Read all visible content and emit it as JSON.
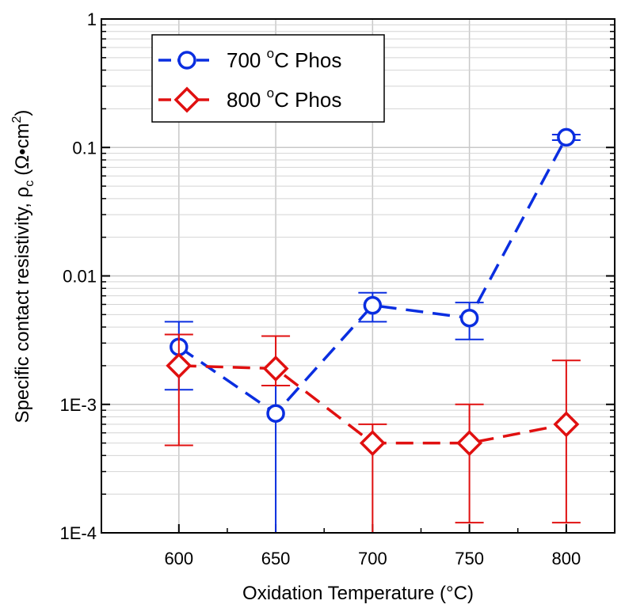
{
  "chart_data": {
    "type": "line",
    "xlabel": "Oxidation Temperature (°C)",
    "ylabel_main": "Specific contact resistivity, ρ",
    "ylabel_sub": "c",
    "ylabel_unit_pre": "(Ω•cm",
    "ylabel_unit_sup": "2",
    "ylabel_unit_post": ")",
    "x_ticks": [
      {
        "value": 600,
        "label": "600"
      },
      {
        "value": 650,
        "label": "650"
      },
      {
        "value": 700,
        "label": "700"
      },
      {
        "value": 750,
        "label": "750"
      },
      {
        "value": 800,
        "label": "800"
      }
    ],
    "y_ticks": [
      {
        "value": 0.0001,
        "label": "1E-4"
      },
      {
        "value": 0.001,
        "label": "1E-3"
      },
      {
        "value": 0.01,
        "label": "0.01"
      },
      {
        "value": 0.1,
        "label": "0.1"
      },
      {
        "value": 1,
        "label": "1"
      }
    ],
    "xlim": [
      560,
      825
    ],
    "ylim": [
      0.0001,
      1
    ],
    "y_scale": "log",
    "grid": true,
    "legend_position": "top-left",
    "series": [
      {
        "name_pre": "700 ",
        "name_sup": "o",
        "name_post": "C Phos",
        "color": "#0a2ee0",
        "marker": "circle",
        "points": [
          {
            "x": 600,
            "y": 0.0028,
            "err_low": 0.0013,
            "err_high": 0.0044
          },
          {
            "x": 650,
            "y": 0.00085,
            "err_low": 0.0001,
            "err_high": 0.0014
          },
          {
            "x": 700,
            "y": 0.0059,
            "err_low": 0.0044,
            "err_high": 0.0074
          },
          {
            "x": 750,
            "y": 0.0047,
            "err_low": 0.0032,
            "err_high": 0.0062
          },
          {
            "x": 800,
            "y": 0.12,
            "err_low": 0.114,
            "err_high": 0.126
          }
        ]
      },
      {
        "name_pre": "800 ",
        "name_sup": "o",
        "name_post": "C Phos",
        "color": "#e01010",
        "marker": "diamond",
        "points": [
          {
            "x": 600,
            "y": 0.002,
            "err_low": 0.00048,
            "err_high": 0.0035
          },
          {
            "x": 650,
            "y": 0.0019,
            "err_low": 0.0014,
            "err_high": 0.0034
          },
          {
            "x": 700,
            "y": 0.0005,
            "err_low": 0.0001,
            "err_high": 0.0007
          },
          {
            "x": 750,
            "y": 0.0005,
            "err_low": 0.00012,
            "err_high": 0.001
          },
          {
            "x": 800,
            "y": 0.0007,
            "err_low": 0.00012,
            "err_high": 0.0022
          }
        ]
      }
    ]
  }
}
